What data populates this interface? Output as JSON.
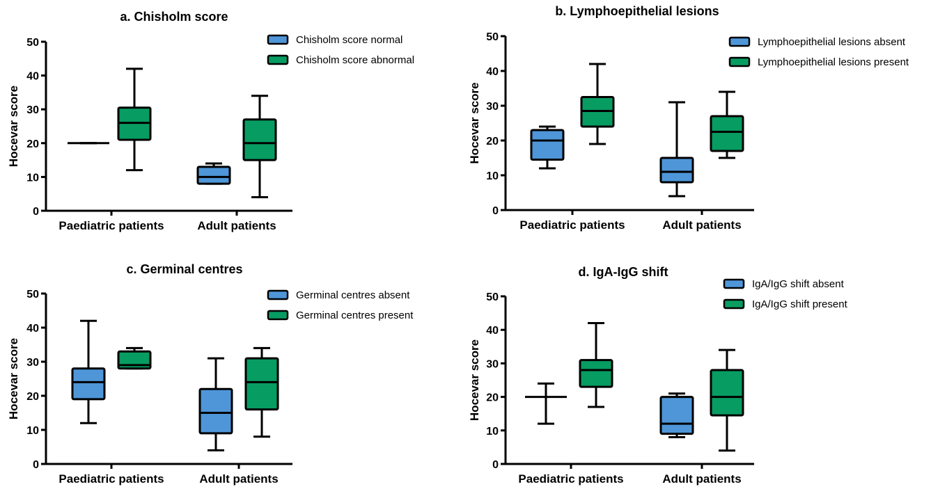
{
  "colors": {
    "absent": "#4e96d8",
    "present": "#079c62",
    "stroke": "#000000"
  },
  "chart_data": [
    {
      "type": "boxplot",
      "title": "a. Chisholm score",
      "ylabel": "Hocevar score",
      "ylim": [
        0,
        50
      ],
      "yticks": [
        0,
        10,
        20,
        30,
        40,
        50
      ],
      "categories": [
        "Paediatric patients",
        "Adult patients"
      ],
      "legend_position": "top-right",
      "series": [
        {
          "name": "Chisholm score normal",
          "color": "#4e96d8",
          "boxes": [
            {
              "min": 20,
              "q1": 20,
              "median": 20,
              "q3": 20,
              "max": 20
            },
            {
              "min": 8,
              "q1": 8,
              "median": 10,
              "q3": 13,
              "max": 14
            }
          ]
        },
        {
          "name": "Chisholm score abnormal",
          "color": "#079c62",
          "boxes": [
            {
              "min": 12,
              "q1": 21,
              "median": 26,
              "q3": 30.5,
              "max": 42
            },
            {
              "min": 4,
              "q1": 15,
              "median": 20,
              "q3": 27,
              "max": 34
            }
          ]
        }
      ]
    },
    {
      "type": "boxplot",
      "title": "b. Lymphoepithelial lesions",
      "ylabel": "Hocevar score",
      "ylim": [
        0,
        50
      ],
      "yticks": [
        0,
        10,
        20,
        30,
        40,
        50
      ],
      "categories": [
        "Paediatric patients",
        "Adult patients"
      ],
      "legend_position": "top-right",
      "series": [
        {
          "name": "Lymphoepithelial lesions absent",
          "color": "#4e96d8",
          "boxes": [
            {
              "min": 12,
              "q1": 14.5,
              "median": 20,
              "q3": 23,
              "max": 24
            },
            {
              "min": 4,
              "q1": 8,
              "median": 11,
              "q3": 15,
              "max": 31
            }
          ]
        },
        {
          "name": "Lymphoepithelial lesions present",
          "color": "#079c62",
          "boxes": [
            {
              "min": 19,
              "q1": 24,
              "median": 28.5,
              "q3": 32.5,
              "max": 42
            },
            {
              "min": 15,
              "q1": 17,
              "median": 22.5,
              "q3": 27,
              "max": 34
            }
          ]
        }
      ]
    },
    {
      "type": "boxplot",
      "title": "c. Germinal centres",
      "ylabel": "Hocevar score",
      "ylim": [
        0,
        50
      ],
      "yticks": [
        0,
        10,
        20,
        30,
        40,
        50
      ],
      "categories": [
        "Paediatric patients",
        "Adult patients"
      ],
      "legend_position": "top-right",
      "series": [
        {
          "name": "Germinal centres absent",
          "color": "#4e96d8",
          "boxes": [
            {
              "min": 12,
              "q1": 19,
              "median": 24,
              "q3": 28,
              "max": 42
            },
            {
              "min": 4,
              "q1": 9,
              "median": 15,
              "q3": 22,
              "max": 31
            }
          ]
        },
        {
          "name": "Germinal centres present",
          "color": "#079c62",
          "boxes": [
            {
              "min": 28,
              "q1": 28,
              "median": 29,
              "q3": 33,
              "max": 34
            },
            {
              "min": 8,
              "q1": 16,
              "median": 24,
              "q3": 31,
              "max": 34
            }
          ]
        }
      ]
    },
    {
      "type": "boxplot",
      "title": "d. IgA-IgG shift",
      "ylabel": "Hocevar score",
      "ylim": [
        0,
        50
      ],
      "yticks": [
        0,
        10,
        20,
        30,
        40,
        50
      ],
      "categories": [
        "Paediatric patients",
        "Adult patients"
      ],
      "legend_position": "top-right",
      "series": [
        {
          "name": "IgA/IgG shift absent",
          "color": "#4e96d8",
          "boxes": [
            {
              "min": 12,
              "q1": 20,
              "median": 20,
              "q3": 20,
              "max": 24
            },
            {
              "min": 8,
              "q1": 9,
              "median": 12,
              "q3": 20,
              "max": 21
            }
          ]
        },
        {
          "name": "IgA/IgG shift present",
          "color": "#079c62",
          "boxes": [
            {
              "min": 17,
              "q1": 23,
              "median": 28,
              "q3": 31,
              "max": 42
            },
            {
              "min": 4,
              "q1": 14.5,
              "median": 20,
              "q3": 28,
              "max": 34
            }
          ]
        }
      ]
    }
  ]
}
